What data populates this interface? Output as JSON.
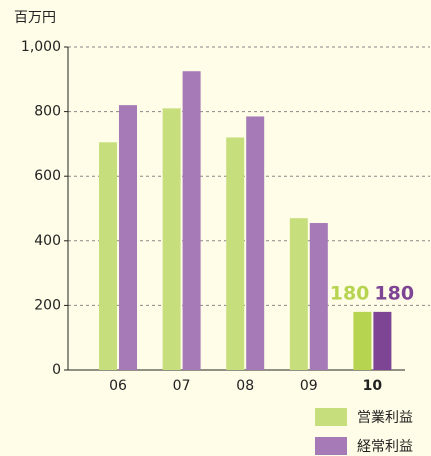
{
  "chart_data": {
    "type": "bar",
    "y_label": "百万円",
    "categories": [
      "06",
      "07",
      "08",
      "09",
      "10"
    ],
    "series": [
      {
        "name": "営業利益",
        "color": "#c6df7c",
        "values": [
          705,
          810,
          720,
          470,
          180
        ]
      },
      {
        "name": "経常利益",
        "color": "#a57ab6",
        "values": [
          820,
          925,
          785,
          455,
          180
        ]
      }
    ],
    "highlight_category": "10",
    "highlight_colors": [
      "#b7d450",
      "#7e4595"
    ],
    "ylim": [
      0,
      1000
    ],
    "yticks": [
      0,
      200,
      400,
      600,
      800,
      {
        "value": 1000,
        "label": "1,000"
      }
    ],
    "grid": true,
    "legend": "bottom-right"
  }
}
